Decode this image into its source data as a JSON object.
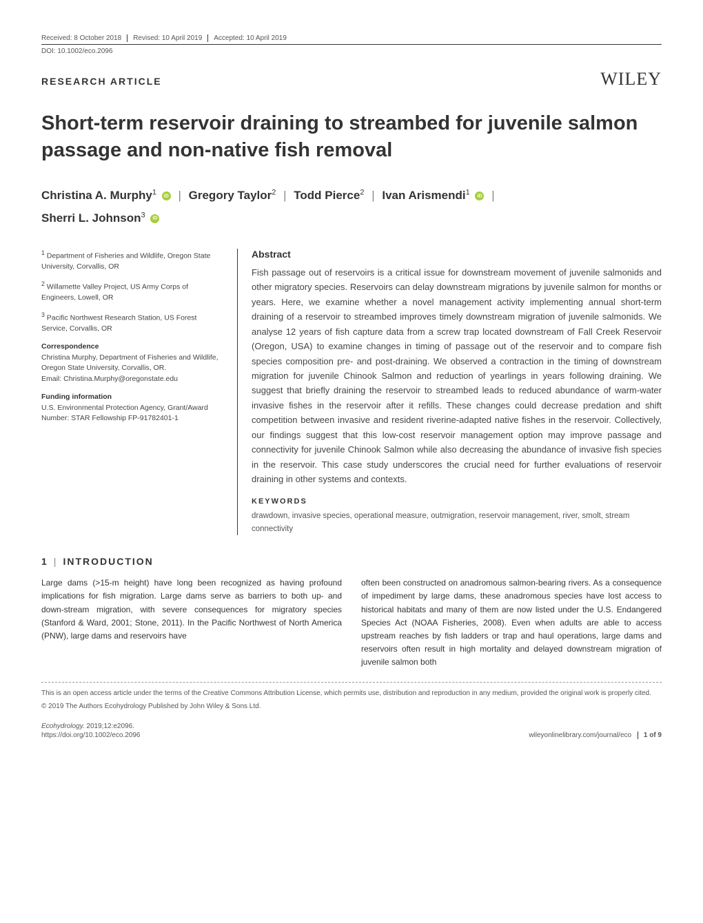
{
  "colors": {
    "background": "#ffffff",
    "text_primary": "#333333",
    "text_secondary": "#555555",
    "text_body": "#444444",
    "orcid_green": "#a6ce39",
    "divider": "#999999",
    "author_sep": "#888888"
  },
  "typography": {
    "body_font": "Arial, Helvetica, sans-serif",
    "logo_font": "Georgia, serif",
    "title_size": 29,
    "author_size": 17,
    "abstract_size": 13,
    "body_size": 12,
    "meta_size": 10
  },
  "header": {
    "received": "Received: 8 October 2018",
    "revised": "Revised: 10 April 2019",
    "accepted": "Accepted: 10 April 2019",
    "doi": "DOI: 10.1002/eco.2096",
    "article_type": "RESEARCH ARTICLE",
    "publisher_logo": "WILEY"
  },
  "title": "Short-term reservoir draining to streambed for juvenile salmon passage and non-native fish removal",
  "authors": [
    {
      "name": "Christina A. Murphy",
      "affil": "1",
      "orcid": true
    },
    {
      "name": "Gregory Taylor",
      "affil": "2",
      "orcid": false
    },
    {
      "name": "Todd Pierce",
      "affil": "2",
      "orcid": false
    },
    {
      "name": "Ivan Arismendi",
      "affil": "1",
      "orcid": true
    },
    {
      "name": "Sherri L. Johnson",
      "affil": "3",
      "orcid": true
    }
  ],
  "affiliations": {
    "aff1": "Department of Fisheries and Wildlife, Oregon State University, Corvallis, OR",
    "aff1_sup": "1",
    "aff2": "Willamette Valley Project, US Army Corps of Engineers, Lowell, OR",
    "aff2_sup": "2",
    "aff3": "Pacific Northwest Research Station, US Forest Service, Corvallis, OR",
    "aff3_sup": "3"
  },
  "correspondence": {
    "heading": "Correspondence",
    "text": "Christina Murphy, Department of Fisheries and Wildlife, Oregon State University, Corvallis, OR.",
    "email_label": "Email:",
    "email": "Christina.Murphy@oregonstate.edu"
  },
  "funding": {
    "heading": "Funding information",
    "text": "U.S. Environmental Protection Agency, Grant/Award Number: STAR Fellowship FP-91782401-1"
  },
  "abstract": {
    "heading": "Abstract",
    "text": "Fish passage out of reservoirs is a critical issue for downstream movement of juvenile salmonids and other migratory species. Reservoirs can delay downstream migrations by juvenile salmon for months or years. Here, we examine whether a novel management activity implementing annual short-term draining of a reservoir to streambed improves timely downstream migration of juvenile salmonids. We analyse 12 years of fish capture data from a screw trap located downstream of Fall Creek Reservoir (Oregon, USA) to examine changes in timing of passage out of the reservoir and to compare fish species composition pre- and post-draining. We observed a contraction in the timing of downstream migration for juvenile Chinook Salmon and reduction of yearlings in years following draining. We suggest that briefly draining the reservoir to streambed leads to reduced abundance of warm-water invasive fishes in the reservoir after it refills. These changes could decrease predation and shift competition between invasive and resident riverine-adapted native fishes in the reservoir. Collectively, our findings suggest that this low-cost reservoir management option may improve passage and connectivity for juvenile Chinook Salmon while also decreasing the abundance of invasive fish species in the reservoir. This case study underscores the crucial need for further evaluations of reservoir draining in other systems and contexts."
  },
  "keywords": {
    "heading": "KEYWORDS",
    "text": "drawdown, invasive species, operational measure, outmigration, reservoir management, river, smolt, stream connectivity"
  },
  "section1": {
    "number": "1",
    "title": "INTRODUCTION",
    "col1": "Large dams (>15-m height) have long been recognized as having profound implications for fish migration. Large dams serve as barriers to both up- and down-stream migration, with severe consequences for migratory species (Stanford & Ward, 2001; Stone, 2011). In the Pacific Northwest of North America (PNW), large dams and reservoirs have",
    "col2": "often been constructed on anadromous salmon-bearing rivers. As a consequence of impediment by large dams, these anadromous species have lost access to historical habitats and many of them are now listed under the U.S. Endangered Species Act (NOAA Fisheries, 2008). Even when adults are able to access upstream reaches by fish ladders or trap and haul operations, large dams and reservoirs often result in high mortality and delayed downstream migration of juvenile salmon both"
  },
  "license": {
    "text": "This is an open access article under the terms of the Creative Commons Attribution License, which permits use, distribution and reproduction in any medium, provided the original work is properly cited.",
    "copyright": "© 2019 The Authors Ecohydrology Published by John Wiley & Sons Ltd."
  },
  "footer": {
    "journal": "Ecohydrology.",
    "citation": "2019;12:e2096.",
    "link": "https://doi.org/10.1002/eco.2096",
    "right_link": "wileyonlinelibrary.com/journal/eco",
    "page": "1 of 9"
  }
}
